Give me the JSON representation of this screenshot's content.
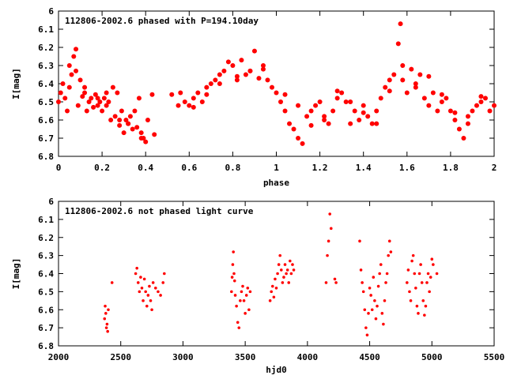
{
  "chart_data": [
    {
      "type": "scatter",
      "title": "112806-2002.6 phased with P=194.10day",
      "xlabel": "phase",
      "ylabel": "I[mag]",
      "xlim": [
        0,
        2
      ],
      "ylim": [
        6.8,
        6
      ],
      "y_inverted": true,
      "x_ticks": [
        "0",
        "0.2",
        "0.4",
        "0.6",
        "0.8",
        "1",
        "1.2",
        "1.4",
        "1.6",
        "1.8",
        "2"
      ],
      "y_ticks": [
        "6",
        "6.1",
        "6.2",
        "6.3",
        "6.4",
        "6.5",
        "6.6",
        "6.7",
        "6.8"
      ],
      "grid": false,
      "marker_color": "#ff0000",
      "series": [
        {
          "x": [
            0.0,
            0.01,
            0.02,
            0.03,
            0.04,
            0.05,
            0.06,
            0.07,
            0.08,
            0.09,
            0.1,
            0.11,
            0.12,
            0.13,
            0.14,
            0.15,
            0.16,
            0.17,
            0.18,
            0.19,
            0.2,
            0.21,
            0.22,
            0.23,
            0.24,
            0.25,
            0.26,
            0.27,
            0.28,
            0.29,
            0.3,
            0.31,
            0.32,
            0.33,
            0.34,
            0.35,
            0.36,
            0.37,
            0.38,
            0.39,
            0.4,
            0.41,
            0.43,
            0.44,
            0.52,
            0.55,
            0.56,
            0.58,
            0.6,
            0.62,
            0.64,
            0.66,
            0.68,
            0.7,
            0.72,
            0.74,
            0.76,
            0.78,
            0.8,
            0.82,
            0.84,
            0.86,
            0.88,
            0.9,
            0.92,
            0.94,
            0.96,
            0.98,
            1.0,
            1.02,
            1.04,
            1.06,
            1.08,
            1.1,
            1.12,
            1.14,
            1.16,
            1.18,
            1.2,
            1.22,
            1.24,
            1.26,
            1.28,
            1.3,
            1.32,
            1.34,
            1.36,
            1.38,
            1.4,
            1.42,
            1.44,
            1.46,
            1.48,
            1.5,
            1.52,
            1.54,
            1.56,
            1.57,
            1.58,
            1.6,
            1.62,
            1.64,
            1.66,
            1.68,
            1.7,
            1.72,
            1.74,
            1.76,
            1.78,
            1.8,
            1.82,
            1.84,
            1.86,
            1.88,
            1.9,
            1.92,
            1.94,
            1.96,
            1.98,
            2.0,
            0.05,
            0.08,
            0.12,
            0.18,
            0.22,
            0.28,
            0.32,
            0.38,
            0.62,
            0.68,
            0.74,
            0.82,
            0.88,
            0.94,
            1.04,
            1.1,
            1.16,
            1.22,
            1.28,
            1.34,
            1.4,
            1.46,
            1.52,
            1.58,
            1.64,
            1.7,
            1.76,
            1.82,
            1.88,
            1.94
          ],
          "y": [
            6.5,
            6.45,
            6.4,
            6.48,
            6.55,
            6.3,
            6.35,
            6.25,
            6.21,
            6.52,
            6.38,
            6.47,
            6.42,
            6.55,
            6.5,
            6.48,
            6.53,
            6.46,
            6.52,
            6.5,
            6.55,
            6.48,
            6.45,
            6.5,
            6.6,
            6.42,
            6.58,
            6.45,
            6.63,
            6.55,
            6.67,
            6.6,
            6.62,
            6.58,
            6.65,
            6.55,
            6.64,
            6.48,
            6.67,
            6.7,
            6.72,
            6.6,
            6.46,
            6.68,
            6.46,
            6.52,
            6.45,
            6.5,
            6.52,
            6.48,
            6.45,
            6.5,
            6.42,
            6.4,
            6.38,
            6.35,
            6.33,
            6.28,
            6.3,
            6.38,
            6.27,
            6.35,
            6.33,
            6.22,
            6.37,
            6.3,
            6.38,
            6.42,
            6.45,
            6.5,
            6.55,
            6.62,
            6.65,
            6.7,
            6.73,
            6.58,
            6.55,
            6.52,
            6.5,
            6.6,
            6.62,
            6.55,
            6.48,
            6.45,
            6.5,
            6.62,
            6.55,
            6.6,
            6.52,
            6.58,
            6.62,
            6.55,
            6.48,
            6.42,
            6.38,
            6.35,
            6.18,
            6.07,
            6.38,
            6.45,
            6.32,
            6.42,
            6.35,
            6.48,
            6.52,
            6.45,
            6.55,
            6.5,
            6.48,
            6.55,
            6.6,
            6.65,
            6.7,
            6.62,
            6.55,
            6.52,
            6.5,
            6.48,
            6.55,
            6.52,
            6.42,
            6.33,
            6.45,
            6.48,
            6.52,
            6.6,
            6.62,
            6.7,
            6.53,
            6.46,
            6.4,
            6.36,
            6.33,
            6.32,
            6.46,
            6.52,
            6.63,
            6.58,
            6.44,
            6.5,
            6.56,
            6.62,
            6.44,
            6.3,
            6.4,
            6.36,
            6.46,
            6.56,
            6.58,
            6.47
          ]
        }
      ]
    },
    {
      "type": "scatter",
      "title": "112806-2002.6 not phased light curve",
      "xlabel": "hjd0",
      "ylabel": "I[mag]",
      "xlim": [
        2000,
        5500
      ],
      "ylim": [
        6.8,
        6
      ],
      "y_inverted": true,
      "x_ticks": [
        "2000",
        "2500",
        "3000",
        "3500",
        "4000",
        "4500",
        "5000",
        "5500"
      ],
      "y_ticks": [
        "6",
        "6.1",
        "6.2",
        "6.3",
        "6.4",
        "6.5",
        "6.6",
        "6.7",
        "6.8"
      ],
      "grid": false,
      "marker_color": "#ff0000",
      "series": [
        {
          "x": [
            2370,
            2375,
            2380,
            2385,
            2390,
            2395,
            2400,
            2430,
            2620,
            2630,
            2640,
            2650,
            2660,
            2670,
            2680,
            2690,
            2700,
            2710,
            2720,
            2730,
            2740,
            2750,
            2760,
            2780,
            2800,
            2820,
            2840,
            2850,
            3390,
            3395,
            3400,
            3405,
            3410,
            3415,
            3420,
            3430,
            3440,
            3450,
            3460,
            3470,
            3480,
            3490,
            3500,
            3510,
            3520,
            3530,
            3540,
            3700,
            3710,
            3720,
            3730,
            3740,
            3750,
            3760,
            3770,
            3780,
            3790,
            3800,
            3810,
            3820,
            3830,
            3840,
            3850,
            3860,
            3870,
            3880,
            3890,
            4150,
            4160,
            4170,
            4180,
            4190,
            4220,
            4230,
            4420,
            4430,
            4440,
            4450,
            4460,
            4470,
            4480,
            4490,
            4500,
            4510,
            4520,
            4530,
            4540,
            4550,
            4560,
            4570,
            4580,
            4590,
            4600,
            4610,
            4620,
            4630,
            4640,
            4650,
            4660,
            4670,
            4800,
            4810,
            4820,
            4830,
            4840,
            4850,
            4860,
            4870,
            4880,
            4890,
            4900,
            4910,
            4920,
            4930,
            4940,
            4950,
            4960,
            4970,
            4980,
            4990,
            5000,
            5010,
            5040
          ],
          "y": [
            6.65,
            6.58,
            6.62,
            6.7,
            6.68,
            6.72,
            6.6,
            6.45,
            6.4,
            6.37,
            6.45,
            6.5,
            6.42,
            6.48,
            6.55,
            6.43,
            6.5,
            6.58,
            6.52,
            6.47,
            6.55,
            6.6,
            6.45,
            6.48,
            6.5,
            6.52,
            6.45,
            6.4,
            6.5,
            6.42,
            6.35,
            6.28,
            6.4,
            6.44,
            6.52,
            6.58,
            6.67,
            6.7,
            6.55,
            6.5,
            6.47,
            6.55,
            6.62,
            6.52,
            6.48,
            6.6,
            6.5,
            6.55,
            6.5,
            6.47,
            6.53,
            6.43,
            6.48,
            6.4,
            6.35,
            6.3,
            6.38,
            6.45,
            6.42,
            6.35,
            6.4,
            6.38,
            6.45,
            6.33,
            6.4,
            6.35,
            6.38,
            6.45,
            6.3,
            6.22,
            6.07,
            6.15,
            6.43,
            6.45,
            6.22,
            6.38,
            6.45,
            6.5,
            6.6,
            6.7,
            6.74,
            6.62,
            6.48,
            6.52,
            6.6,
            6.42,
            6.55,
            6.65,
            6.58,
            6.47,
            6.4,
            6.35,
            6.62,
            6.68,
            6.55,
            6.45,
            6.4,
            6.3,
            6.22,
            6.28,
            6.45,
            6.38,
            6.5,
            6.55,
            6.33,
            6.3,
            6.4,
            6.48,
            6.58,
            6.62,
            6.4,
            6.35,
            6.45,
            6.55,
            6.63,
            6.58,
            6.45,
            6.4,
            6.5,
            6.42,
            6.32,
            6.35,
            6.4
          ]
        }
      ]
    }
  ]
}
